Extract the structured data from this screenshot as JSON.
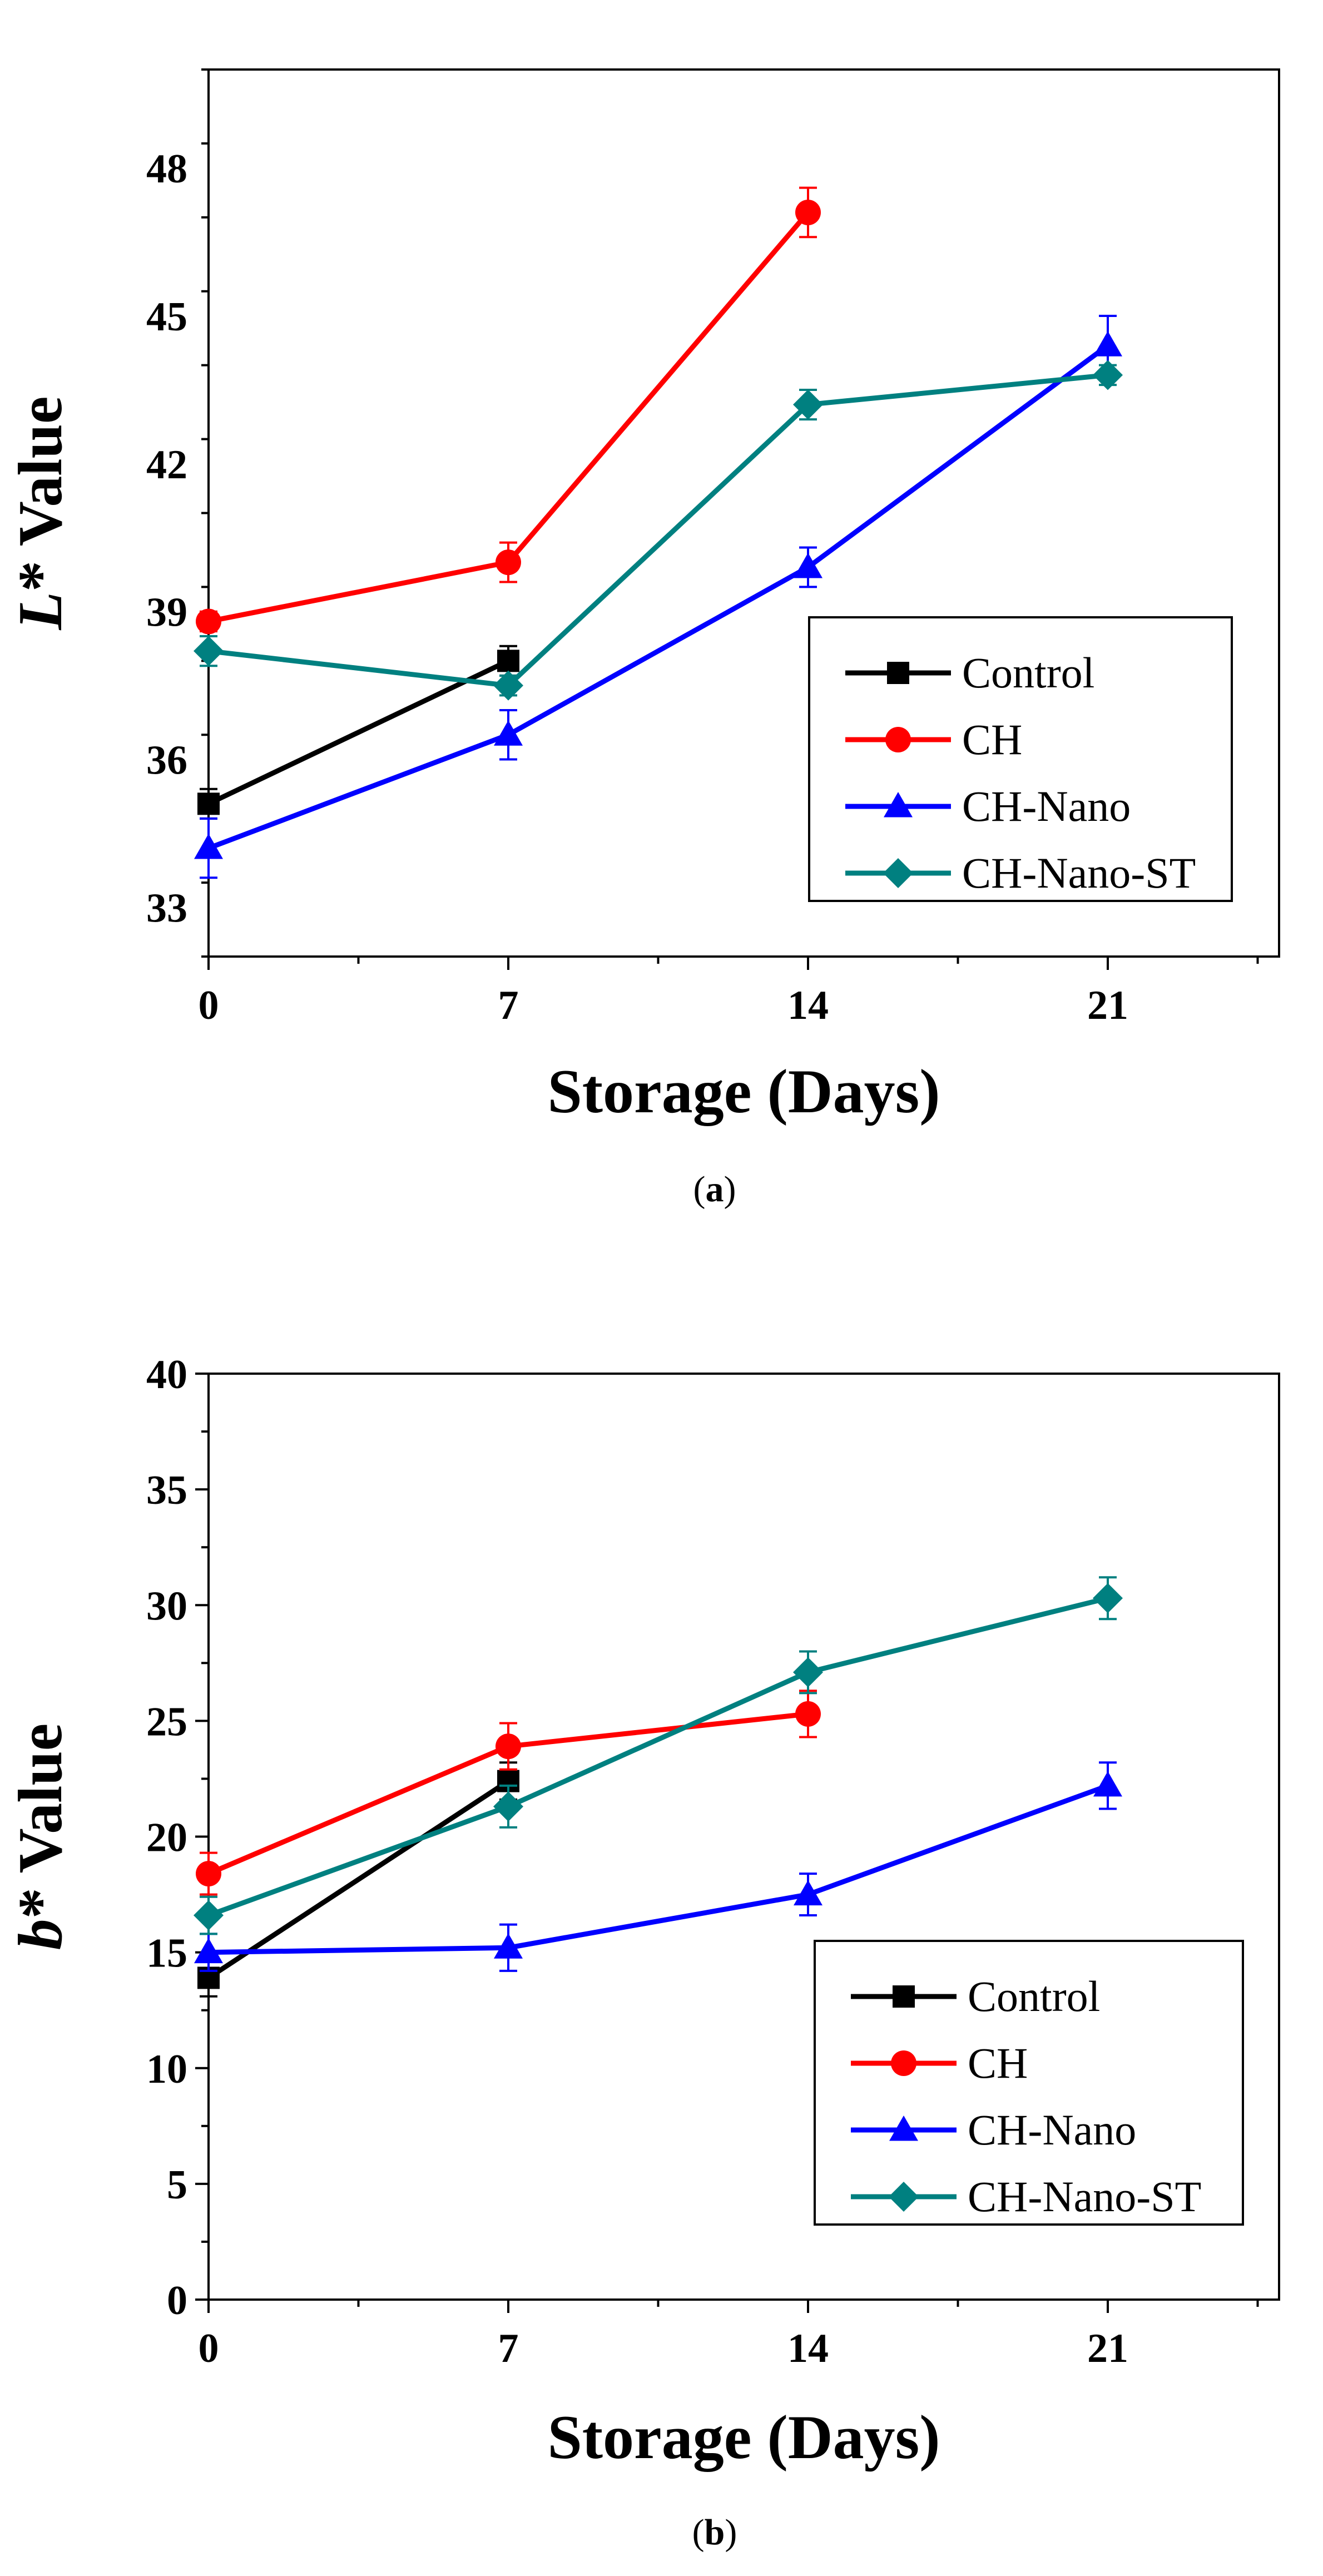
{
  "chart_data": [
    {
      "type": "line",
      "panel_label": "a",
      "caption_open": "(",
      "caption_close": ")",
      "xlabel": "Storage (Days)",
      "ylabel_italic": "L",
      "ylabel_rest": "* Value",
      "x_ticks": [
        0,
        7,
        14,
        21
      ],
      "y_ticks": [
        33,
        36,
        39,
        42,
        45,
        48
      ],
      "xlim": [
        0,
        25
      ],
      "ylim": [
        32,
        50
      ],
      "grid": false,
      "legend_position": "lower-right",
      "series": [
        {
          "name": "Control",
          "color": "#000000",
          "marker": "square",
          "x": [
            0,
            7
          ],
          "values": [
            35.1,
            38.0
          ],
          "errors": [
            0.3,
            0.3
          ]
        },
        {
          "name": "CH",
          "color": "#ff0000",
          "marker": "circle",
          "x": [
            0,
            7,
            14
          ],
          "values": [
            38.8,
            40.0,
            47.1
          ],
          "errors": [
            0.2,
            0.4,
            0.5
          ]
        },
        {
          "name": "CH-Nano",
          "color": "#0000ff",
          "marker": "triangle",
          "x": [
            0,
            7,
            14,
            21
          ],
          "values": [
            34.2,
            36.5,
            39.9,
            44.4
          ],
          "errors": [
            0.6,
            0.5,
            0.4,
            0.6
          ]
        },
        {
          "name": "CH-Nano-ST",
          "color": "#008080",
          "marker": "diamond",
          "x": [
            0,
            7,
            14,
            21
          ],
          "values": [
            38.2,
            37.5,
            43.2,
            43.8
          ],
          "errors": [
            0.3,
            0.2,
            0.3,
            0.2
          ]
        }
      ]
    },
    {
      "type": "line",
      "panel_label": "b",
      "caption_open": "(",
      "caption_close": ")",
      "xlabel": "Storage (Days)",
      "ylabel_italic": "b",
      "ylabel_rest": "* Value",
      "x_ticks": [
        0,
        7,
        14,
        21
      ],
      "y_ticks": [
        0,
        5,
        10,
        15,
        20,
        25,
        30,
        35,
        40
      ],
      "xlim": [
        0,
        25
      ],
      "ylim": [
        0,
        40
      ],
      "grid": false,
      "legend_position": "lower-right",
      "series": [
        {
          "name": "Control",
          "color": "#000000",
          "marker": "square",
          "x": [
            0,
            7
          ],
          "values": [
            13.9,
            22.4
          ],
          "errors": [
            0.8,
            0.8
          ]
        },
        {
          "name": "CH",
          "color": "#ff0000",
          "marker": "circle",
          "x": [
            0,
            7,
            14
          ],
          "values": [
            18.4,
            23.9,
            25.3
          ],
          "errors": [
            0.9,
            1.0,
            1.0
          ]
        },
        {
          "name": "CH-Nano",
          "color": "#0000ff",
          "marker": "triangle",
          "x": [
            0,
            7,
            14,
            21
          ],
          "values": [
            15.0,
            15.2,
            17.5,
            22.2
          ],
          "errors": [
            0.8,
            1.0,
            0.9,
            1.0
          ]
        },
        {
          "name": "CH-Nano-ST",
          "color": "#008080",
          "marker": "diamond",
          "x": [
            0,
            7,
            14,
            21
          ],
          "values": [
            16.6,
            21.3,
            27.1,
            30.3
          ],
          "errors": [
            0.8,
            0.9,
            0.9,
            0.9
          ]
        }
      ]
    }
  ]
}
